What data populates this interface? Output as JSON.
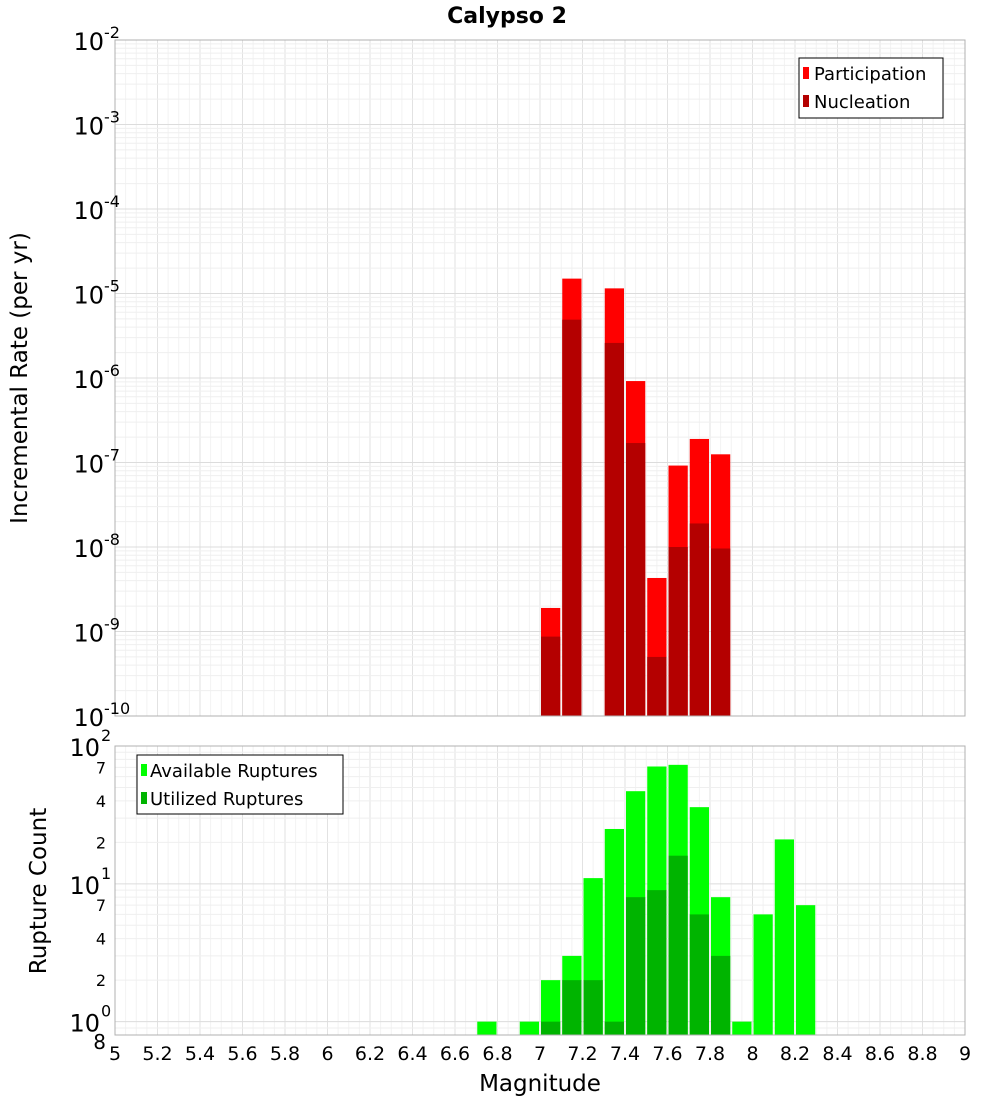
{
  "chart_data": [
    {
      "type": "bar",
      "title": "Calypso 2",
      "ylabel": "Incremental Rate (per yr)",
      "yscale": "log",
      "ylim": [
        1e-10,
        0.01
      ],
      "xlim": [
        5,
        9
      ],
      "grid": true,
      "legend_position": "top-right",
      "bar_width": 0.1,
      "y_tick_exponents": [
        "-10",
        "-9",
        "-8",
        "-7",
        "-6",
        "-5",
        "-4",
        "-3",
        "-2"
      ],
      "y_tick_base": "10",
      "series": [
        {
          "name": "Participation",
          "color": "#ff0000",
          "x": [
            7.05,
            7.15,
            7.35,
            7.45,
            7.55,
            7.65,
            7.75,
            7.85
          ],
          "values": [
            1.9e-09,
            1.5e-05,
            1.15e-05,
            9.2e-07,
            4.3e-09,
            9.2e-08,
            1.9e-07,
            1.25e-07
          ]
        },
        {
          "name": "Nucleation",
          "color": "#b40000",
          "x": [
            7.05,
            7.15,
            7.35,
            7.45,
            7.55,
            7.65,
            7.75,
            7.85
          ],
          "values": [
            8.7e-10,
            4.9e-06,
            2.6e-06,
            1.7e-07,
            5e-10,
            1e-08,
            1.9e-08,
            9.6e-09
          ]
        }
      ]
    },
    {
      "type": "bar",
      "ylabel": "Rupture Count",
      "xlabel": "Magnitude",
      "yscale": "log",
      "ylim": [
        0.8,
        100
      ],
      "xlim": [
        5,
        9
      ],
      "grid": true,
      "legend_position": "top-left",
      "bar_width": 0.1,
      "x_ticks": [
        "5",
        "5.2",
        "5.4",
        "5.6",
        "5.8",
        "6",
        "6.2",
        "6.4",
        "6.6",
        "6.8",
        "7",
        "7.2",
        "7.4",
        "7.6",
        "7.8",
        "8",
        "8.2",
        "8.4",
        "8.6",
        "8.8",
        "9"
      ],
      "y_major_ticks": [
        {
          "value": 1,
          "base": "10",
          "exp": "0"
        },
        {
          "value": 10,
          "base": "10",
          "exp": "1"
        },
        {
          "value": 100,
          "base": "10",
          "exp": "2"
        }
      ],
      "y_minor_ticks": [
        {
          "value": 0.8,
          "label": "8"
        },
        {
          "value": 2,
          "label": "2"
        },
        {
          "value": 4,
          "label": "4"
        },
        {
          "value": 7,
          "label": "7"
        },
        {
          "value": 20,
          "label": "2"
        },
        {
          "value": 40,
          "label": "4"
        },
        {
          "value": 70,
          "label": "7"
        }
      ],
      "series": [
        {
          "name": "Available Ruptures",
          "color": "#00ff00",
          "x": [
            6.75,
            6.95,
            7.05,
            7.15,
            7.25,
            7.35,
            7.45,
            7.55,
            7.65,
            7.75,
            7.85,
            7.95,
            8.05,
            8.15,
            8.25
          ],
          "values": [
            1,
            1,
            2,
            3,
            11,
            25,
            47,
            71,
            73,
            36,
            8,
            1,
            6,
            21,
            7
          ]
        },
        {
          "name": "Utilized Ruptures",
          "color": "#00b400",
          "x": [
            7.05,
            7.15,
            7.25,
            7.35,
            7.45,
            7.55,
            7.65,
            7.75,
            7.85
          ],
          "values": [
            1,
            2,
            2,
            1,
            8,
            9,
            16,
            6,
            3
          ]
        }
      ]
    }
  ]
}
